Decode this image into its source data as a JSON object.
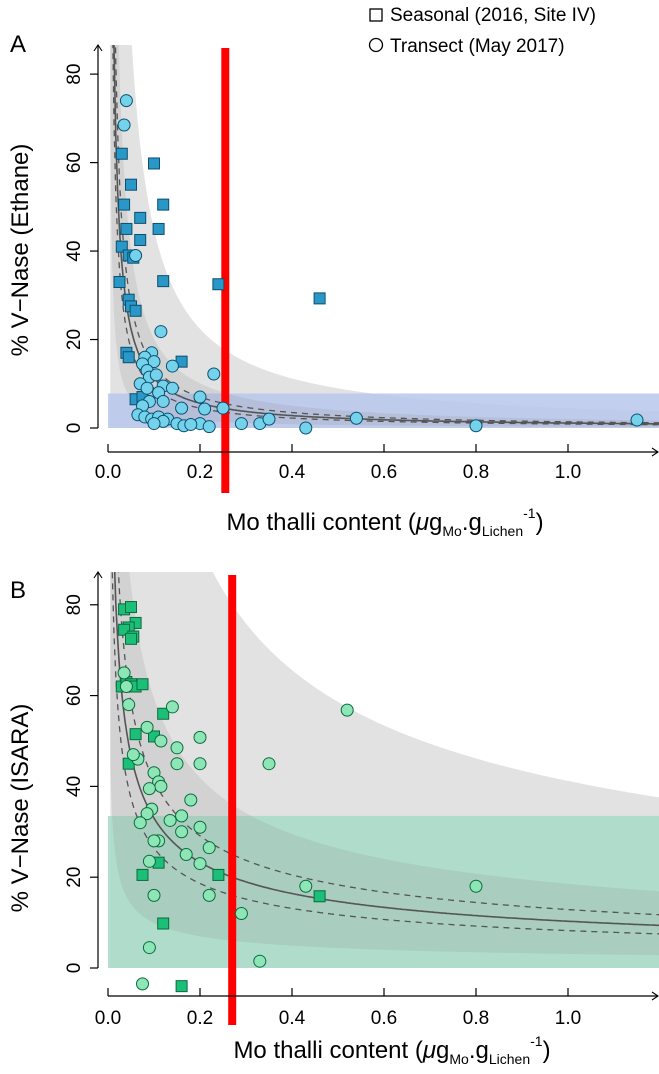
{
  "legend": {
    "entries": [
      {
        "label": "Seasonal (2016, Site IV)",
        "marker": "square"
      },
      {
        "label": "Transect (May 2017)",
        "marker": "circle"
      }
    ]
  },
  "colors": {
    "panel_a_marker": "#2a97c7",
    "panel_a_marker_stroke": "#0a4f70",
    "panel_a_band": "#b9c7ec",
    "panel_b_square": "#1bbf78",
    "panel_b_circle": "#8ee6b6",
    "panel_b_stroke": "#0a6a3c",
    "panel_b_band": "#a7dcc7",
    "outer_band": "#e2e2e2",
    "inner_band": "#c8c8c8",
    "fit_line": "#555555",
    "threshold_line": "#ff0000"
  },
  "chart_data": [
    {
      "panel": "A",
      "type": "scatter",
      "xlabel": "Mo thalli content (μgMo.gLichen-1)",
      "xlabel_parts": {
        "prefix": "Mo thalli content (",
        "mu": "μ",
        "g1": "g",
        "sub1": "Mo",
        "dot": ".g",
        "sub2": "Lichen",
        "sup": "-1",
        "suffix": ")"
      },
      "ylabel": "% V−Nase (Ethane)",
      "xlim": [
        0,
        1.2
      ],
      "ylim": [
        0,
        85
      ],
      "xticks": [
        "0.0",
        "0.2",
        "0.4",
        "0.6",
        "0.8",
        "1.0"
      ],
      "xtick_values": [
        0,
        0.2,
        0.4,
        0.6,
        0.8,
        1.0
      ],
      "yticks": [
        "0",
        "20",
        "40",
        "60",
        "80"
      ],
      "ytick_values": [
        0,
        20,
        40,
        60,
        80
      ],
      "fit_k": 2.2,
      "ci_factor": [
        0.8,
        1.25
      ],
      "pred_factor": [
        0.3,
        4.0
      ],
      "threshold_x": 0.255,
      "band_y": [
        0,
        7.8
      ],
      "series": [
        {
          "name": "Seasonal (2016, Site IV)",
          "marker": "square",
          "points": [
            [
              0.03,
              62
            ],
            [
              0.035,
              50.5
            ],
            [
              0.04,
              45
            ],
            [
              0.05,
              55
            ],
            [
              0.07,
              47.5
            ],
            [
              0.07,
              42.5
            ],
            [
              0.1,
              59.8
            ],
            [
              0.12,
              50.5
            ],
            [
              0.11,
              45
            ],
            [
              0.03,
              41
            ],
            [
              0.045,
              39
            ],
            [
              0.055,
              38.5
            ],
            [
              0.025,
              33
            ],
            [
              0.12,
              33.2
            ],
            [
              0.24,
              32.5
            ],
            [
              0.46,
              29.3
            ],
            [
              0.045,
              29
            ],
            [
              0.05,
              27.5
            ],
            [
              0.06,
              26.5
            ],
            [
              0.04,
              17
            ],
            [
              0.045,
              16
            ],
            [
              0.16,
              15
            ],
            [
              0.06,
              6.5
            ],
            [
              0.075,
              7
            ]
          ]
        },
        {
          "name": "Transect (May 2017)",
          "marker": "circle",
          "points": [
            [
              0.04,
              74
            ],
            [
              0.035,
              68.5
            ],
            [
              0.06,
              39
            ],
            [
              0.115,
              21.8
            ],
            [
              0.095,
              17
            ],
            [
              0.08,
              16
            ],
            [
              0.1,
              15
            ],
            [
              0.075,
              14.5
            ],
            [
              0.14,
              14
            ],
            [
              0.085,
              13
            ],
            [
              0.09,
              11.5
            ],
            [
              0.105,
              12
            ],
            [
              0.23,
              12.2
            ],
            [
              0.07,
              10
            ],
            [
              0.12,
              9.5
            ],
            [
              0.085,
              9
            ],
            [
              0.14,
              9
            ],
            [
              0.11,
              8
            ],
            [
              0.2,
              7
            ],
            [
              0.09,
              6
            ],
            [
              0.12,
              6
            ],
            [
              0.075,
              5
            ],
            [
              0.16,
              4.5
            ],
            [
              0.21,
              4.3
            ],
            [
              0.25,
              4.5
            ],
            [
              0.065,
              3
            ],
            [
              0.08,
              2.5
            ],
            [
              0.095,
              2
            ],
            [
              0.11,
              2.5
            ],
            [
              0.13,
              2
            ],
            [
              0.12,
              1.5
            ],
            [
              0.15,
              1
            ],
            [
              0.1,
              1
            ],
            [
              0.2,
              1
            ],
            [
              0.29,
              1
            ],
            [
              0.33,
              1
            ],
            [
              0.35,
              2
            ],
            [
              0.165,
              0.5
            ],
            [
              0.43,
              0
            ],
            [
              0.54,
              2.2
            ],
            [
              0.8,
              0.5
            ],
            [
              1.15,
              1.8
            ],
            [
              0.18,
              0.8
            ],
            [
              0.22,
              0.3
            ]
          ]
        }
      ]
    },
    {
      "panel": "B",
      "type": "scatter",
      "xlabel": "Mo thalli content (μgMo.gLichen-1)",
      "xlabel_parts": {
        "prefix": "Mo thalli content (",
        "mu": "μ",
        "g1": "g",
        "sub1": "Mo",
        "dot": ".g",
        "sub2": "Lichen",
        "sup": "-1",
        "suffix": ")"
      },
      "ylabel": "% V−Nase (ISARA)",
      "xlim": [
        0,
        1.2
      ],
      "ylim": [
        -5,
        87
      ],
      "xticks": [
        "0.0",
        "0.2",
        "0.4",
        "0.6",
        "0.8",
        "1.0"
      ],
      "xtick_values": [
        0,
        0.2,
        0.4,
        0.6,
        0.8,
        1.0
      ],
      "yticks": [
        "0",
        "20",
        "40",
        "60",
        "80"
      ],
      "ytick_values": [
        0,
        20,
        40,
        60,
        80
      ],
      "fit_k": 11.2,
      "fit_c": 0.8,
      "ci_factor": [
        0.8,
        1.25
      ],
      "pred_factor": [
        0.3,
        4.0
      ],
      "threshold_x": 0.27,
      "band_y": [
        0,
        33.5
      ],
      "series": [
        {
          "name": "Seasonal (2016, Site IV)",
          "marker": "square",
          "points": [
            [
              0.035,
              79
            ],
            [
              0.05,
              79.5
            ],
            [
              0.06,
              76
            ],
            [
              0.045,
              75
            ],
            [
              0.035,
              74.5
            ],
            [
              0.055,
              73
            ],
            [
              0.05,
              72.5
            ],
            [
              0.03,
              62
            ],
            [
              0.04,
              63
            ],
            [
              0.05,
              62.5
            ],
            [
              0.06,
              62
            ],
            [
              0.075,
              62.5
            ],
            [
              0.12,
              56
            ],
            [
              0.1,
              51
            ],
            [
              0.06,
              51.5
            ],
            [
              0.045,
              45
            ],
            [
              0.11,
              23.2
            ],
            [
              0.075,
              20.5
            ],
            [
              0.24,
              20.5
            ],
            [
              0.46,
              15.8
            ],
            [
              0.12,
              9.8
            ],
            [
              0.16,
              -4
            ]
          ]
        },
        {
          "name": "Transect (May 2017)",
          "marker": "circle",
          "points": [
            [
              0.035,
              65
            ],
            [
              0.04,
              62
            ],
            [
              0.14,
              57.5
            ],
            [
              0.52,
              56.8
            ],
            [
              0.045,
              58
            ],
            [
              0.085,
              53
            ],
            [
              0.2,
              50.8
            ],
            [
              0.115,
              50
            ],
            [
              0.15,
              48.5
            ],
            [
              0.065,
              46
            ],
            [
              0.055,
              47
            ],
            [
              0.2,
              45
            ],
            [
              0.15,
              45
            ],
            [
              0.35,
              45
            ],
            [
              0.1,
              43
            ],
            [
              0.11,
              41
            ],
            [
              0.115,
              40
            ],
            [
              0.09,
              39.5
            ],
            [
              0.18,
              37
            ],
            [
              0.095,
              35
            ],
            [
              0.085,
              34
            ],
            [
              0.16,
              33.5
            ],
            [
              0.135,
              32.5
            ],
            [
              0.07,
              32
            ],
            [
              0.2,
              31
            ],
            [
              0.16,
              30
            ],
            [
              0.11,
              28
            ],
            [
              0.1,
              28
            ],
            [
              0.22,
              26.5
            ],
            [
              0.09,
              23.5
            ],
            [
              0.17,
              25
            ],
            [
              0.2,
              23
            ],
            [
              0.43,
              18
            ],
            [
              0.8,
              18
            ],
            [
              0.1,
              16
            ],
            [
              0.22,
              16
            ],
            [
              0.29,
              12
            ],
            [
              0.09,
              4.5
            ],
            [
              0.33,
              1.5
            ],
            [
              0.075,
              -3.5
            ]
          ]
        }
      ]
    }
  ],
  "panel_labels": [
    "A",
    "B"
  ]
}
